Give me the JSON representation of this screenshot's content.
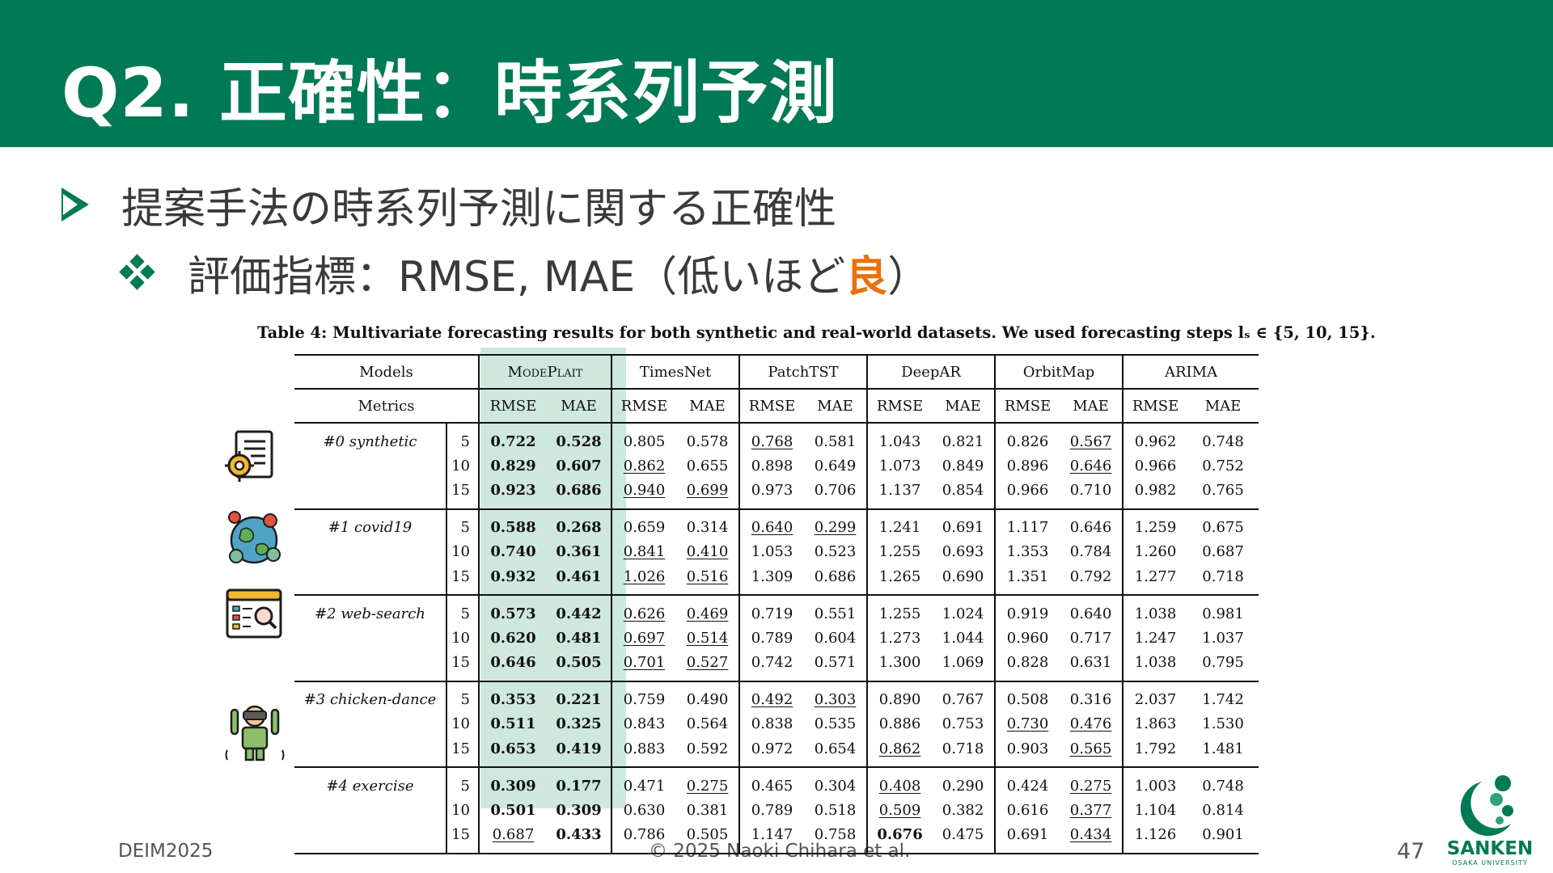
{
  "slide": {
    "title": "Q2. 正確性：時系列予測",
    "bullet1": "提案手法の時系列予測に関する正確性",
    "bullet2_prefix": "評価指標：RMSE, MAE（低いほど",
    "bullet2_accent": "良",
    "bullet2_suffix": "）",
    "accent_color": "#E8710A",
    "theme_color": "#007A55"
  },
  "table": {
    "caption": "Table 4: Multivariate forecasting results for both synthetic and real-world datasets. We used forecasting steps lₛ ∈ {5, 10, 15}.",
    "models_label": "Models",
    "metrics_label": "Metrics",
    "models": [
      "ModePlait",
      "TimesNet",
      "PatchTST",
      "DeepAR",
      "OrbitMap",
      "ARIMA"
    ],
    "metric_names": [
      "RMSE",
      "MAE"
    ],
    "highlight_model": "ModePlait",
    "datasets": [
      {
        "name": "#0 synthetic",
        "icon": "document-gear-icon",
        "rows": [
          {
            "step": "5",
            "vals": [
              "0.722",
              "0.528",
              "0.805",
              "0.578",
              "0.768",
              "0.581",
              "1.043",
              "0.821",
              "0.826",
              "0.567",
              "0.962",
              "0.748"
            ],
            "bold": [
              0,
              1
            ],
            "under": [
              4,
              9
            ]
          },
          {
            "step": "10",
            "vals": [
              "0.829",
              "0.607",
              "0.862",
              "0.655",
              "0.898",
              "0.649",
              "1.073",
              "0.849",
              "0.896",
              "0.646",
              "0.966",
              "0.752"
            ],
            "bold": [
              0,
              1
            ],
            "under": [
              2,
              9
            ]
          },
          {
            "step": "15",
            "vals": [
              "0.923",
              "0.686",
              "0.940",
              "0.699",
              "0.973",
              "0.706",
              "1.137",
              "0.854",
              "0.966",
              "0.710",
              "0.982",
              "0.765"
            ],
            "bold": [
              0,
              1
            ],
            "under": [
              2,
              3
            ]
          }
        ]
      },
      {
        "name": "#1 covid19",
        "icon": "globe-virus-icon",
        "rows": [
          {
            "step": "5",
            "vals": [
              "0.588",
              "0.268",
              "0.659",
              "0.314",
              "0.640",
              "0.299",
              "1.241",
              "0.691",
              "1.117",
              "0.646",
              "1.259",
              "0.675"
            ],
            "bold": [
              0,
              1
            ],
            "under": [
              4,
              5
            ]
          },
          {
            "step": "10",
            "vals": [
              "0.740",
              "0.361",
              "0.841",
              "0.410",
              "1.053",
              "0.523",
              "1.255",
              "0.693",
              "1.353",
              "0.784",
              "1.260",
              "0.687"
            ],
            "bold": [
              0,
              1
            ],
            "under": [
              2,
              3
            ]
          },
          {
            "step": "15",
            "vals": [
              "0.932",
              "0.461",
              "1.026",
              "0.516",
              "1.309",
              "0.686",
              "1.265",
              "0.690",
              "1.351",
              "0.792",
              "1.277",
              "0.718"
            ],
            "bold": [
              0,
              1
            ],
            "under": [
              2,
              3
            ]
          }
        ]
      },
      {
        "name": "#2 web-search",
        "icon": "browser-search-icon",
        "rows": [
          {
            "step": "5",
            "vals": [
              "0.573",
              "0.442",
              "0.626",
              "0.469",
              "0.719",
              "0.551",
              "1.255",
              "1.024",
              "0.919",
              "0.640",
              "1.038",
              "0.981"
            ],
            "bold": [
              0,
              1
            ],
            "under": [
              2,
              3
            ]
          },
          {
            "step": "10",
            "vals": [
              "0.620",
              "0.481",
              "0.697",
              "0.514",
              "0.789",
              "0.604",
              "1.273",
              "1.044",
              "0.960",
              "0.717",
              "1.247",
              "1.037"
            ],
            "bold": [
              0,
              1
            ],
            "under": [
              2,
              3
            ]
          },
          {
            "step": "15",
            "vals": [
              "0.646",
              "0.505",
              "0.701",
              "0.527",
              "0.742",
              "0.571",
              "1.300",
              "1.069",
              "0.828",
              "0.631",
              "1.038",
              "0.795"
            ],
            "bold": [
              0,
              1
            ],
            "under": [
              2,
              3
            ]
          }
        ]
      },
      {
        "name": "#3 chicken-dance",
        "icon": "",
        "rows": [
          {
            "step": "5",
            "vals": [
              "0.353",
              "0.221",
              "0.759",
              "0.490",
              "0.492",
              "0.303",
              "0.890",
              "0.767",
              "0.508",
              "0.316",
              "2.037",
              "1.742"
            ],
            "bold": [
              0,
              1
            ],
            "under": [
              4,
              5
            ]
          },
          {
            "step": "10",
            "vals": [
              "0.511",
              "0.325",
              "0.843",
              "0.564",
              "0.838",
              "0.535",
              "0.886",
              "0.753",
              "0.730",
              "0.476",
              "1.863",
              "1.530"
            ],
            "bold": [
              0,
              1
            ],
            "under": [
              8,
              9
            ]
          },
          {
            "step": "15",
            "vals": [
              "0.653",
              "0.419",
              "0.883",
              "0.592",
              "0.972",
              "0.654",
              "0.862",
              "0.718",
              "0.903",
              "0.565",
              "1.792",
              "1.481"
            ],
            "bold": [
              0,
              1
            ],
            "under": [
              6,
              9
            ]
          }
        ]
      },
      {
        "name": "#4 exercise",
        "icon": "vr-person-icon",
        "rows": [
          {
            "step": "5",
            "vals": [
              "0.309",
              "0.177",
              "0.471",
              "0.275",
              "0.465",
              "0.304",
              "0.408",
              "0.290",
              "0.424",
              "0.275",
              "1.003",
              "0.748"
            ],
            "bold": [
              0,
              1
            ],
            "under": [
              3,
              6,
              9
            ]
          },
          {
            "step": "10",
            "vals": [
              "0.501",
              "0.309",
              "0.630",
              "0.381",
              "0.789",
              "0.518",
              "0.509",
              "0.382",
              "0.616",
              "0.377",
              "1.104",
              "0.814"
            ],
            "bold": [
              0,
              1
            ],
            "under": [
              6,
              9
            ]
          },
          {
            "step": "15",
            "vals": [
              "0.687",
              "0.433",
              "0.786",
              "0.505",
              "1.147",
              "0.758",
              "0.676",
              "0.475",
              "0.691",
              "0.434",
              "1.126",
              "0.901"
            ],
            "bold": [
              1,
              6
            ],
            "under": [
              0,
              9
            ]
          }
        ]
      }
    ]
  },
  "footer": {
    "left": "DEIM2025",
    "center": "© 2025 Naoki Chihara et al.",
    "page": "47",
    "logo_name": "SANKEN",
    "logo_sub": "OSAKA UNIVERSITY"
  }
}
